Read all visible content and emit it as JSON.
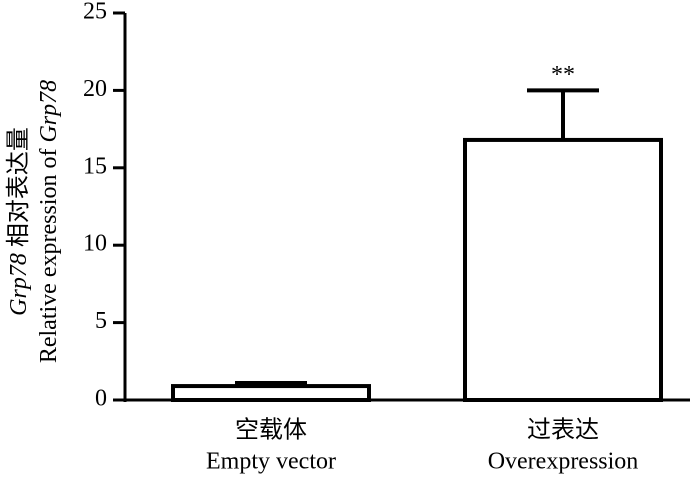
{
  "chart_data": {
    "type": "bar",
    "y_label": [
      [
        "Grp78",
        " 相对表达量"
      ],
      [
        "Relative expression of ",
        "Grp78"
      ]
    ],
    "y_label_italic": [
      [
        true,
        false
      ],
      [
        false,
        true
      ]
    ],
    "categories": [
      "Empty vector",
      "Overexpression"
    ],
    "categories_zh": [
      "空载体",
      "过表达"
    ],
    "values": [
      0.9,
      16.8
    ],
    "errors": [
      0.2,
      3.2
    ],
    "annotations": [
      "",
      "**"
    ],
    "color": "#ffffff",
    "edge_color": "#000000",
    "ylim": [
      0,
      25
    ],
    "yticks": [
      0,
      5,
      10,
      15,
      20,
      25
    ],
    "grid": false
  }
}
